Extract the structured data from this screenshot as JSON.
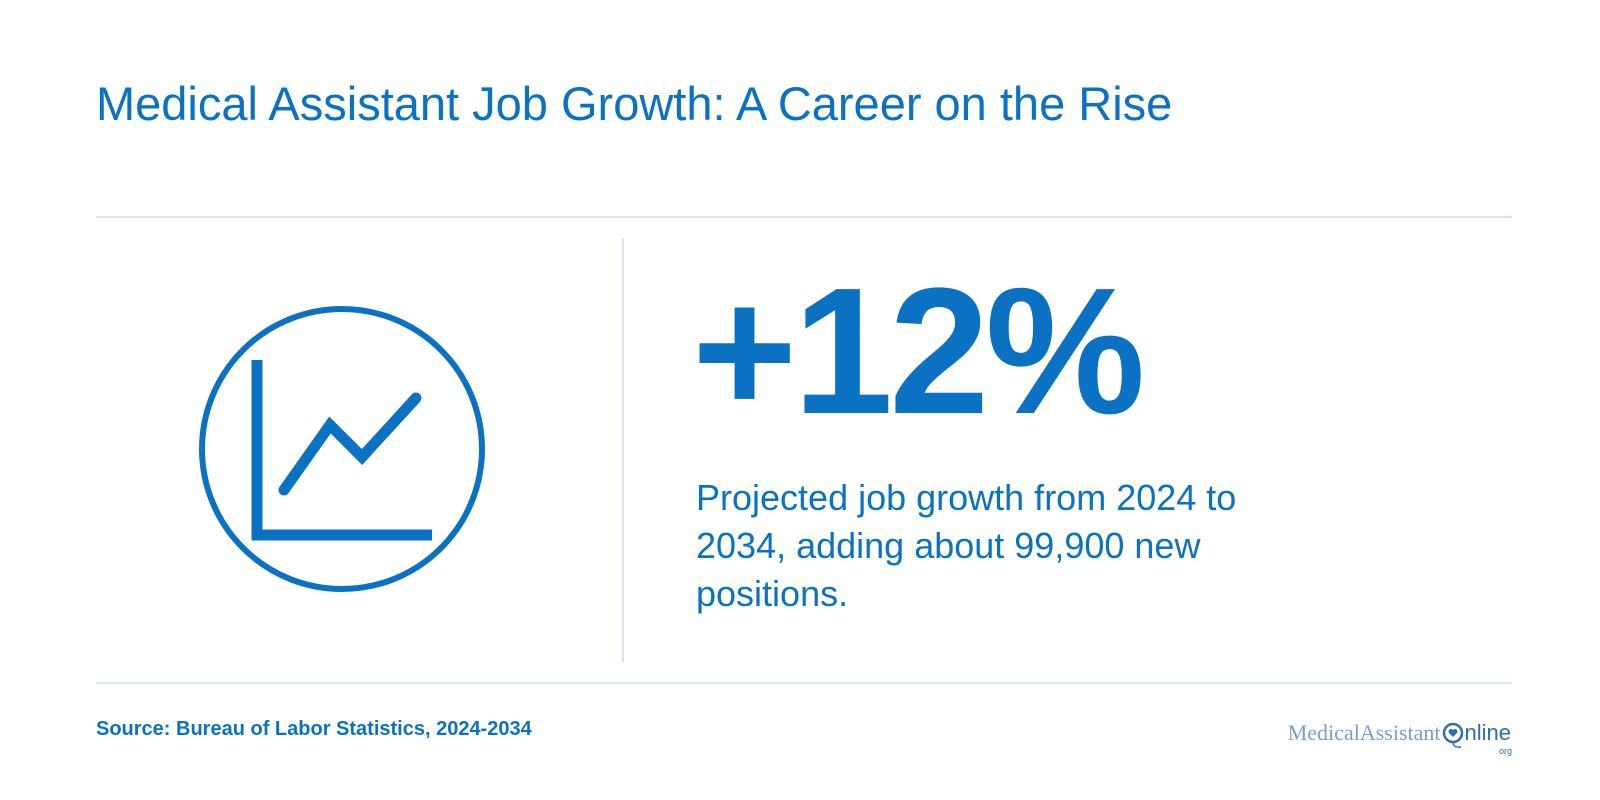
{
  "header": {
    "title": "Medical Assistant Job Growth: A Career on the Rise"
  },
  "stat": {
    "value": "+12%",
    "description": "Projected job growth from 2024 to 2034, adding about 99,900 new positions."
  },
  "footer": {
    "source": "Source: Bureau of Labor Statistics, 2024-2034",
    "logo": {
      "name": "MedicalAssistant",
      "suffix": "nline",
      "tld": "org"
    }
  }
}
